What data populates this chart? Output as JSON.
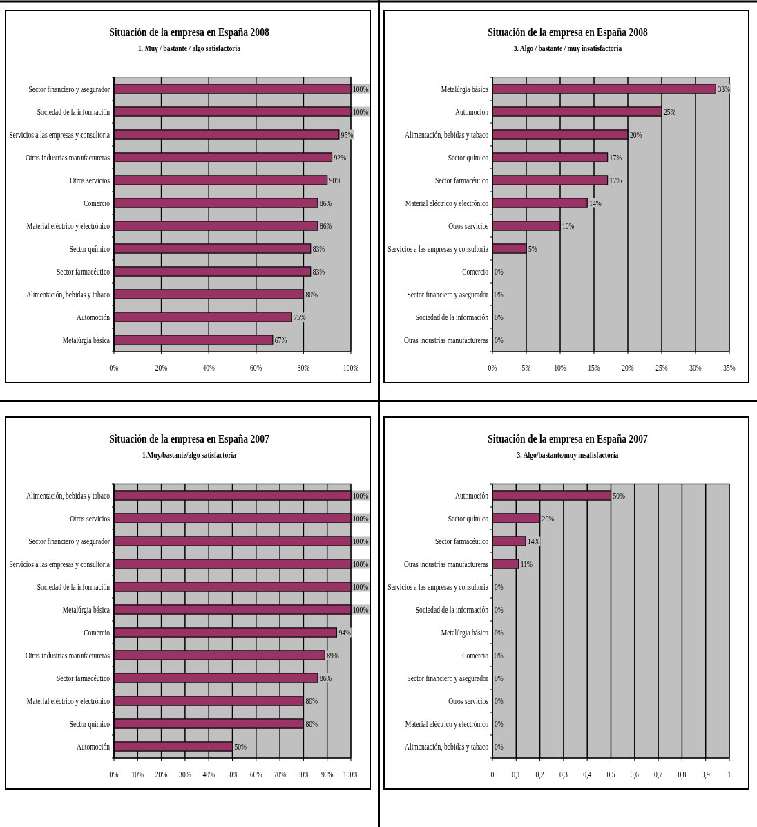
{
  "chart_data": [
    {
      "type": "bar",
      "orientation": "horizontal",
      "title": "Situación de la empresa en España 2008",
      "subtitle": "1. Muy / bastante / algo satisfactoria",
      "color": "#993366",
      "grid": "x",
      "categories": [
        "Sector financiero y asegurador",
        "Sociedad de la información",
        "Servicios a las empresas y consultoria",
        "Otras industrias manufactureras",
        "Otros servicios",
        "Comercio",
        "Material eléctrico y electrónico",
        "Sector químico",
        "Sector farmacéutico",
        "Alimentación, bebidas y tabaco",
        "Automoción",
        "Metalúrgia básica"
      ],
      "values": [
        100,
        100,
        95,
        92,
        90,
        86,
        86,
        83,
        83,
        80,
        75,
        67
      ],
      "value_labels": [
        "100%",
        "100%",
        "95%",
        "92%",
        "90%",
        "86%",
        "86%",
        "83%",
        "83%",
        "80%",
        "75%",
        "67%"
      ],
      "xlim": [
        0,
        100
      ],
      "xticks": [
        {
          "value": 0,
          "label": "0%"
        },
        {
          "value": 20,
          "label": "20%"
        },
        {
          "value": 40,
          "label": "40%"
        },
        {
          "value": 60,
          "label": "60%"
        },
        {
          "value": 80,
          "label": "80%"
        },
        {
          "value": 100,
          "label": "100%"
        }
      ]
    },
    {
      "type": "bar",
      "orientation": "horizontal",
      "title": "Situación de la empresa en España 2008",
      "subtitle": "3. Algo / bastante / muy insatisfactoria",
      "color": "#993366",
      "grid": "x",
      "categories": [
        "Metalúrgia básica",
        "Automoción",
        "Alimentación, bebidas y tabaco",
        "Sector químico",
        "Sector farmacéutico",
        "Material eléctrico y electrónico",
        "Otros servicios",
        "Servicios a las empresas y consultoria",
        "Comercio",
        "Sector financiero y asegurador",
        "Sociedad de la información",
        "Otras industrias manufactureras"
      ],
      "values": [
        33,
        25,
        20,
        17,
        17,
        14,
        10,
        5,
        0,
        0,
        0,
        0
      ],
      "value_labels": [
        "33%",
        "25%",
        "20%",
        "17%",
        "17%",
        "14%",
        "10%",
        "5%",
        "0%",
        "0%",
        "0%",
        "0%"
      ],
      "xlim": [
        0,
        35
      ],
      "xticks": [
        {
          "value": 0,
          "label": "0%"
        },
        {
          "value": 5,
          "label": "5%"
        },
        {
          "value": 10,
          "label": "10%"
        },
        {
          "value": 15,
          "label": "15%"
        },
        {
          "value": 20,
          "label": "20%"
        },
        {
          "value": 25,
          "label": "25%"
        },
        {
          "value": 30,
          "label": "30%"
        },
        {
          "value": 35,
          "label": "35%"
        }
      ]
    },
    {
      "type": "bar",
      "orientation": "horizontal",
      "title": "Situación de la empresa en España 2007",
      "subtitle": "1.Muy/bastante/algo satisfactoria",
      "color": "#993366",
      "grid": "x",
      "categories": [
        "Alimentación, bebidas y tabaco",
        "Otros servicios",
        "Sector financiero y asegurador",
        "Servicios a las empresas y consultoria",
        "Sociedad de la información",
        "Metalúrgia básica",
        "Comercio",
        "Otras industrias manufactureras",
        "Sector farmacéutico",
        "Material eléctrico y electrónico",
        "Sector químico",
        "Automoción"
      ],
      "values": [
        100,
        100,
        100,
        100,
        100,
        100,
        94,
        89,
        86,
        80,
        80,
        50
      ],
      "value_labels": [
        "100%",
        "100%",
        "100%",
        "100%",
        "100%",
        "100%",
        "94%",
        "89%",
        "86%",
        "80%",
        "80%",
        "50%"
      ],
      "xlim": [
        0,
        100
      ],
      "xticks": [
        {
          "value": 0,
          "label": "0%"
        },
        {
          "value": 10,
          "label": "10%"
        },
        {
          "value": 20,
          "label": "20%"
        },
        {
          "value": 30,
          "label": "30%"
        },
        {
          "value": 40,
          "label": "40%"
        },
        {
          "value": 50,
          "label": "50%"
        },
        {
          "value": 60,
          "label": "60%"
        },
        {
          "value": 70,
          "label": "70%"
        },
        {
          "value": 80,
          "label": "80%"
        },
        {
          "value": 90,
          "label": "90%"
        },
        {
          "value": 100,
          "label": "100%"
        }
      ]
    },
    {
      "type": "bar",
      "orientation": "horizontal",
      "title": "Situación de la empresa en España 2007",
      "subtitle": "3. Algo/bastante/muy insafisfactoria",
      "color": "#993366",
      "grid": "x",
      "categories": [
        "Automoción",
        "Sector químico",
        "Sector farmacéutico",
        "Otras industrias manufactureras",
        "Servicios a las empresas y consultoria",
        "Sociedad de la información",
        "Metalúrgia básica",
        "Comercio",
        "Sector financiero y asegurador",
        "Otros servicios",
        "Material eléctrico y electrónico",
        "Alimentación, bebidas y tabaco"
      ],
      "values": [
        0.5,
        0.2,
        0.14,
        0.11,
        0,
        0,
        0,
        0,
        0,
        0,
        0,
        0
      ],
      "value_labels": [
        "50%",
        "20%",
        "14%",
        "11%",
        "0%",
        "0%",
        "0%",
        "0%",
        "0%",
        "0%",
        "0%",
        "0%"
      ],
      "xlim": [
        0,
        1
      ],
      "xticks": [
        0,
        {
          "value": 0.1,
          "label": "0,1"
        },
        {
          "value": 0.2,
          "label": "0,2"
        },
        {
          "value": 0.3,
          "label": "0,3"
        },
        {
          "value": 0.4,
          "label": "0,4"
        },
        {
          "value": 0.5,
          "label": "0,5"
        },
        {
          "value": 0.6,
          "label": "0,6"
        },
        {
          "value": 0.7,
          "label": "0,7"
        },
        {
          "value": 0.8,
          "label": "0,8"
        },
        {
          "value": 0.9,
          "label": "0,9"
        },
        1
      ]
    }
  ]
}
